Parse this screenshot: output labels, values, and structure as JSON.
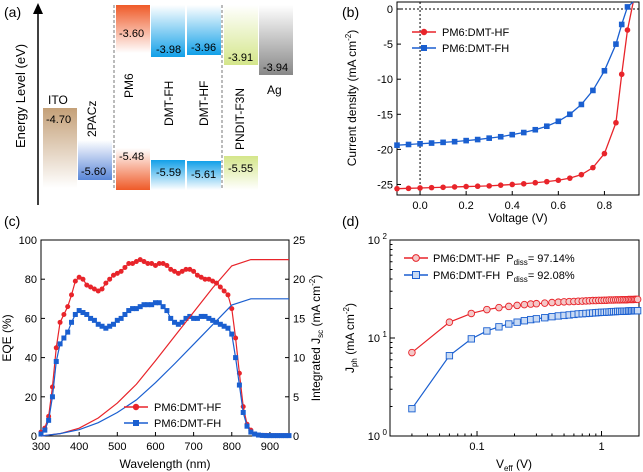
{
  "chart_data": [
    {
      "panel": "(a)",
      "type": "energy-level-diagram",
      "ylabel": "Energy Level (eV)",
      "materials": [
        {
          "name": "ITO",
          "values": [
            "-4.70"
          ],
          "color": "#c4a078"
        },
        {
          "name": "2PACz",
          "values": [
            "-5.60"
          ],
          "color": "#6a8cd8"
        },
        {
          "name": "PM6",
          "values": [
            "-3.60",
            "-5.48"
          ],
          "color": "#f06a3a"
        },
        {
          "name": "DMT-FH",
          "values": [
            "-3.98",
            "-5.59"
          ],
          "color": "#1ea3e8"
        },
        {
          "name": "DMT-HF",
          "values": [
            "-3.96",
            "-5.61"
          ],
          "color": "#1ea3e8"
        },
        {
          "name": "PNDIT-F3N",
          "values": [
            "-3.91",
            "-5.55"
          ],
          "color": "#c8dc70"
        },
        {
          "name": "Ag",
          "values": [
            "-3.94"
          ],
          "color": "#909090"
        }
      ]
    },
    {
      "panel": "(b)",
      "type": "line",
      "xlabel": "Voltage (V)",
      "ylabel": "Current density (mA cm",
      "ylabel_sup": "-2",
      "ylabel_end": ")",
      "xlim": [
        -0.1,
        0.95
      ],
      "ylim": [
        -26.5,
        1
      ],
      "xticks": [
        "0.0",
        "0.2",
        "0.4",
        "0.6",
        "0.8"
      ],
      "yticks": [
        "0",
        "-5",
        "-10",
        "-15",
        "-20",
        "-25"
      ],
      "legend": "top-left",
      "series": [
        {
          "name": "PM6:DMT-HF",
          "color": "#e8242a",
          "marker": "circle",
          "x": [
            -0.1,
            -0.05,
            0,
            0.05,
            0.1,
            0.15,
            0.2,
            0.25,
            0.3,
            0.35,
            0.4,
            0.45,
            0.5,
            0.55,
            0.6,
            0.65,
            0.7,
            0.75,
            0.8,
            0.85,
            0.875,
            0.9,
            0.925
          ],
          "y": [
            -25.6,
            -25.55,
            -25.5,
            -25.45,
            -25.4,
            -25.35,
            -25.3,
            -25.25,
            -25.2,
            -25.1,
            -25.0,
            -24.9,
            -24.75,
            -24.6,
            -24.4,
            -24.1,
            -23.6,
            -22.6,
            -20.6,
            -16.2,
            -9.3,
            -3.0,
            1.0
          ]
        },
        {
          "name": "PM6:DMT-FH",
          "color": "#1a5fd0",
          "marker": "square",
          "x": [
            -0.1,
            -0.05,
            0,
            0.05,
            0.1,
            0.15,
            0.2,
            0.25,
            0.3,
            0.35,
            0.4,
            0.45,
            0.5,
            0.55,
            0.6,
            0.65,
            0.7,
            0.75,
            0.8,
            0.85,
            0.875,
            0.9,
            0.925
          ],
          "y": [
            -19.4,
            -19.3,
            -19.2,
            -19.1,
            -19.0,
            -18.9,
            -18.75,
            -18.6,
            -18.4,
            -18.2,
            -17.9,
            -17.6,
            -17.2,
            -16.7,
            -16.0,
            -15.0,
            -13.6,
            -11.6,
            -8.8,
            -5.0,
            -2.2,
            0.3,
            1.0
          ]
        }
      ]
    },
    {
      "panel": "(c)",
      "type": "line",
      "xlabel": "Wavelength (nm)",
      "ylabel": "EQE (%)",
      "ylabel_right": "Integrated J",
      "ylabel_right_sub": "sc",
      "ylabel_right_end": " (mA cm",
      "ylabel_right_sup": "-2",
      "ylabel_right_close": ")",
      "xlim": [
        300,
        950
      ],
      "ylim": [
        0,
        100
      ],
      "ylim_right": [
        0,
        25
      ],
      "xticks": [
        "300",
        "400",
        "500",
        "600",
        "700",
        "800",
        "900"
      ],
      "yticks": [
        "0",
        "20",
        "40",
        "60",
        "80",
        "100"
      ],
      "yticks_right": [
        "0",
        "5",
        "10",
        "15",
        "20",
        "25"
      ],
      "legend": "bottom-center",
      "series": [
        {
          "name": "PM6:DMT-HF",
          "color": "#e8242a",
          "marker": "circle",
          "x": [
            300,
            310,
            320,
            330,
            340,
            350,
            360,
            370,
            380,
            390,
            400,
            410,
            420,
            430,
            440,
            450,
            460,
            470,
            480,
            490,
            500,
            510,
            520,
            530,
            540,
            550,
            560,
            570,
            580,
            590,
            600,
            610,
            620,
            630,
            640,
            650,
            660,
            670,
            680,
            690,
            700,
            710,
            720,
            730,
            740,
            750,
            760,
            770,
            780,
            790,
            800,
            810,
            820,
            830,
            840,
            850,
            860,
            870,
            880,
            890,
            900,
            910,
            920,
            930,
            940,
            950
          ],
          "y": [
            2,
            4,
            10,
            25,
            45,
            58,
            62,
            66,
            72,
            79,
            81,
            80,
            77,
            76,
            75,
            74,
            75,
            78,
            80,
            82,
            83,
            84,
            86,
            88,
            88,
            89,
            90,
            89,
            88,
            88,
            87,
            88,
            88,
            87,
            85,
            84,
            83,
            84,
            85,
            85,
            84,
            82,
            81,
            80,
            80,
            79,
            78,
            76,
            74,
            72,
            65,
            50,
            32,
            15,
            6,
            3,
            1,
            0.5,
            0.3,
            0.3,
            0.2,
            0.2,
            0.2,
            0.2,
            0.2,
            0.2
          ]
        },
        {
          "name": "PM6:DMT-FH",
          "color": "#1a5fd0",
          "marker": "square",
          "x": [
            300,
            310,
            320,
            330,
            340,
            350,
            360,
            370,
            380,
            390,
            400,
            410,
            420,
            430,
            440,
            450,
            460,
            470,
            480,
            490,
            500,
            510,
            520,
            530,
            540,
            550,
            560,
            570,
            580,
            590,
            600,
            610,
            620,
            630,
            640,
            650,
            660,
            670,
            680,
            690,
            700,
            710,
            720,
            730,
            740,
            750,
            760,
            770,
            780,
            790,
            800,
            810,
            820,
            830,
            840,
            850,
            860,
            870,
            880,
            890,
            900,
            910,
            920,
            930,
            940,
            950
          ],
          "y": [
            1,
            3,
            8,
            20,
            38,
            47,
            50,
            53,
            58,
            62,
            64,
            63,
            62,
            60,
            59,
            57,
            56,
            55,
            56,
            57,
            59,
            60,
            62,
            64,
            65,
            65,
            66,
            67,
            67,
            67,
            68,
            68,
            66,
            64,
            60,
            58,
            57,
            58,
            60,
            61,
            60,
            60,
            61,
            61,
            60,
            59,
            58,
            57,
            56,
            55,
            52,
            40,
            26,
            12,
            5,
            2,
            1,
            0.5,
            0.3,
            0.2,
            0.2,
            0.2,
            0.2,
            0.2,
            0.2,
            0.2
          ]
        },
        {
          "name": "PM6:DMT-HF Integrated",
          "axis": "right",
          "color": "#e8242a",
          "x": [
            300,
            350,
            400,
            450,
            500,
            550,
            600,
            650,
            700,
            750,
            800,
            850,
            900,
            950
          ],
          "y": [
            0,
            0.3,
            1.0,
            2.3,
            4.2,
            6.6,
            9.6,
            12.7,
            15.8,
            18.9,
            21.7,
            22.5,
            22.5,
            22.5
          ]
        },
        {
          "name": "PM6:DMT-FH Integrated",
          "axis": "right",
          "color": "#1a5fd0",
          "x": [
            300,
            350,
            400,
            450,
            500,
            550,
            600,
            650,
            700,
            750,
            800,
            850,
            900,
            950
          ],
          "y": [
            0,
            0.3,
            0.8,
            1.7,
            3.0,
            4.6,
            6.8,
            9.2,
            11.7,
            14.2,
            16.7,
            17.5,
            17.5,
            17.5
          ]
        }
      ]
    },
    {
      "panel": "(d)",
      "type": "scatter-loglog",
      "xlabel": "V",
      "xlabel_sub": "eff",
      "xlabel_end": " (V)",
      "ylabel": "J",
      "ylabel_sub": "ph",
      "ylabel_end": " (mA cm",
      "ylabel_sup": "-2",
      "ylabel_close": ")",
      "xlim": [
        0.02,
        2
      ],
      "ylim": [
        1,
        100
      ],
      "xticks": [
        "0.1",
        "1"
      ],
      "yticks": [
        "10",
        "10",
        "10"
      ],
      "ytick_exps": [
        "0",
        "1",
        "2"
      ],
      "legend": "top-left",
      "series": [
        {
          "name": "PM6:DMT-HF",
          "pdiss_label": "P",
          "pdiss_sub": "diss",
          "pdiss_value": "= 97.14%",
          "color": "#e8242a",
          "marker": "circle-open",
          "x": [
            0.03,
            0.06,
            0.09,
            0.12,
            0.15,
            0.18,
            0.21,
            0.24,
            0.27,
            0.3,
            0.35,
            0.4,
            0.45,
            0.5,
            0.55,
            0.6,
            0.65,
            0.7,
            0.75,
            0.8,
            0.85,
            0.9,
            0.95,
            1.0,
            1.05,
            1.1,
            1.15,
            1.2,
            1.25,
            1.3,
            1.35,
            1.4,
            1.45,
            1.5,
            1.55,
            1.6,
            1.65,
            1.7,
            1.75,
            1.8,
            1.85,
            1.9,
            1.95
          ],
          "y": [
            7.1,
            14.5,
            17.8,
            19.5,
            20.4,
            21.0,
            21.5,
            21.9,
            22.2,
            22.4,
            22.7,
            23.0,
            23.2,
            23.4,
            23.5,
            23.6,
            23.7,
            23.8,
            23.9,
            24.0,
            24.1,
            24.1,
            24.2,
            24.2,
            24.3,
            24.3,
            24.4,
            24.4,
            24.4,
            24.5,
            24.5,
            24.5,
            24.6,
            24.6,
            24.6,
            24.6,
            24.7,
            24.7,
            24.7,
            24.7,
            24.8,
            24.8,
            24.8
          ]
        },
        {
          "name": "PM6:DMT-FH",
          "pdiss_label": "P",
          "pdiss_sub": "diss",
          "pdiss_value": "= 92.08%",
          "color": "#1a5fd0",
          "marker": "square-open",
          "x": [
            0.03,
            0.06,
            0.09,
            0.12,
            0.15,
            0.18,
            0.21,
            0.24,
            0.27,
            0.3,
            0.35,
            0.4,
            0.45,
            0.5,
            0.55,
            0.6,
            0.65,
            0.7,
            0.75,
            0.8,
            0.85,
            0.9,
            0.95,
            1.0,
            1.05,
            1.1,
            1.15,
            1.2,
            1.25,
            1.3,
            1.35,
            1.4,
            1.45,
            1.5,
            1.55,
            1.6,
            1.65,
            1.7,
            1.75,
            1.8,
            1.85,
            1.9,
            1.95
          ],
          "y": [
            1.9,
            6.6,
            9.8,
            11.8,
            13.0,
            13.9,
            14.5,
            15.0,
            15.4,
            15.7,
            16.1,
            16.5,
            16.8,
            17.0,
            17.2,
            17.4,
            17.6,
            17.7,
            17.8,
            17.9,
            18.0,
            18.1,
            18.2,
            18.3,
            18.3,
            18.4,
            18.4,
            18.5,
            18.6,
            18.6,
            18.7,
            18.7,
            18.7,
            18.8,
            18.8,
            18.8,
            18.9,
            18.9,
            18.9,
            19.0,
            19.0,
            19.0,
            19.0
          ]
        }
      ]
    }
  ]
}
